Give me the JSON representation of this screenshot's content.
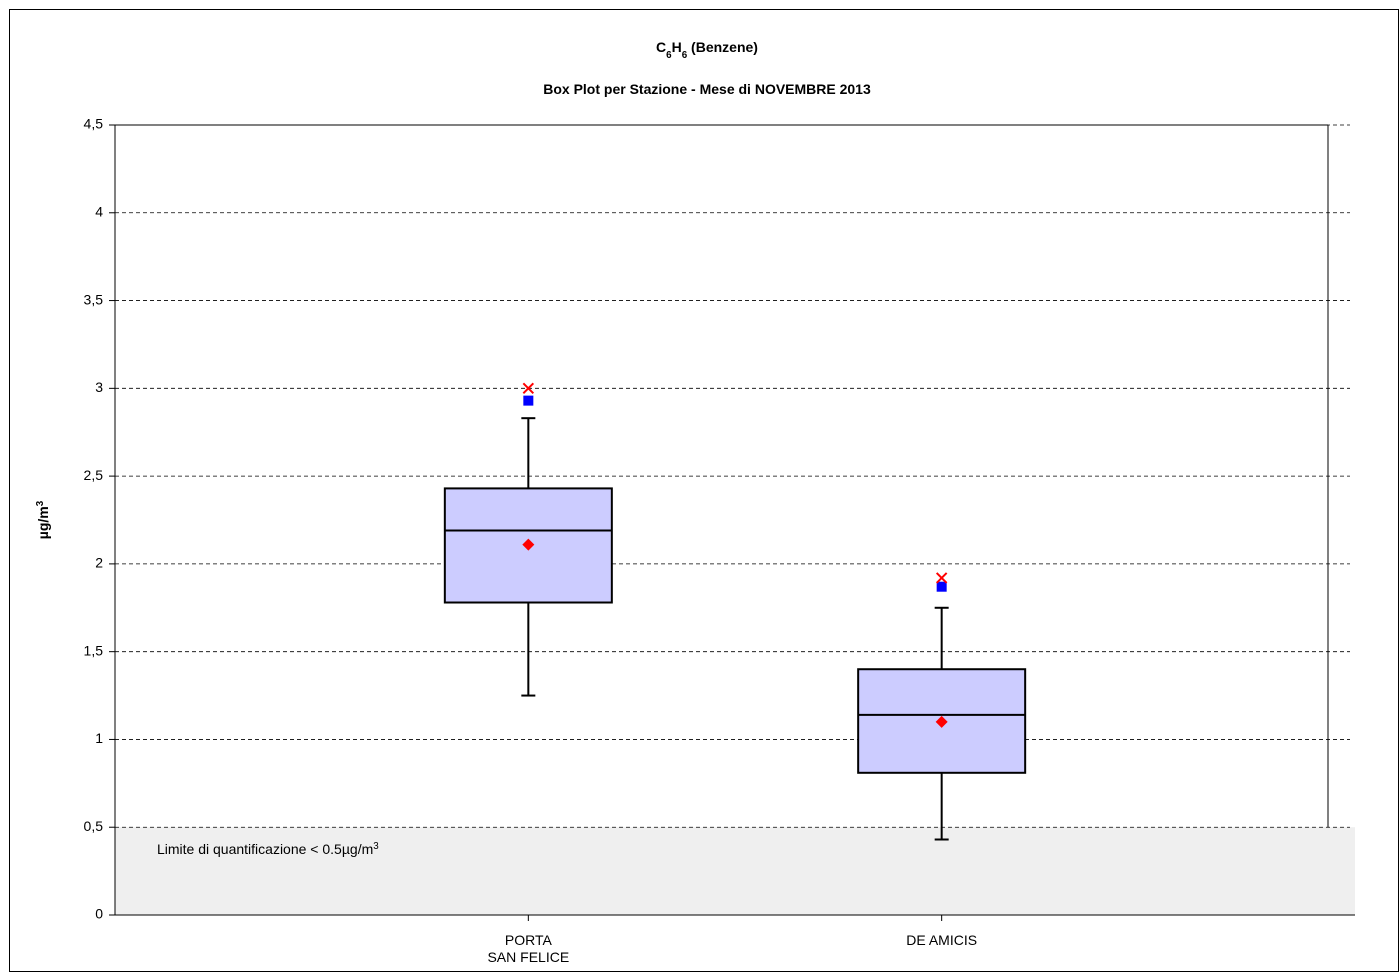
{
  "chart_data": {
    "type": "box",
    "title": [
      {
        "text": "C"
      },
      {
        "text": "6",
        "sub": true
      },
      {
        "text": "H"
      },
      {
        "text": "6",
        "sub": true
      },
      {
        "text": " (Benzene)"
      }
    ],
    "subtitle": "Box Plot per Stazione - Mese di NOVEMBRE 2013",
    "y_label": [
      {
        "text": "µg/m"
      },
      {
        "text": "3",
        "sup": true
      }
    ],
    "annotation": [
      {
        "text": "Limite di quantificazione < 0.5µg/m"
      },
      {
        "text": "3",
        "sup": true
      }
    ],
    "categories": [
      "PORTA\nSAN FELICE",
      "DE AMICIS"
    ],
    "boxes": {
      "whisker_low": [
        1.25,
        0.43
      ],
      "q1": [
        1.78,
        0.81
      ],
      "median": [
        2.19,
        1.14
      ],
      "q3": [
        2.43,
        1.4
      ],
      "whisker_high": [
        2.83,
        1.75
      ],
      "mean": [
        2.11,
        1.1
      ],
      "marker_square": [
        2.93,
        1.87
      ],
      "marker_x": [
        3.0,
        1.92
      ]
    },
    "box_color": "#ccccff",
    "mean_color": "#ff0000",
    "square_color": "#0000ff",
    "x_color": "#ff0000",
    "shaded_band": {
      "from": 0,
      "to": 0.5,
      "color": "#efefef"
    },
    "ylim": [
      0,
      4.5
    ],
    "yticks": [
      0,
      {
        "value": 0.5,
        "label": "0,5"
      },
      1,
      {
        "value": 1.5,
        "label": "1,5"
      },
      2,
      {
        "value": 2.5,
        "label": "2,5"
      },
      3,
      {
        "value": 3.5,
        "label": "3,5"
      },
      4,
      {
        "value": 4.5,
        "label": "4,5"
      }
    ],
    "grid": true
  }
}
